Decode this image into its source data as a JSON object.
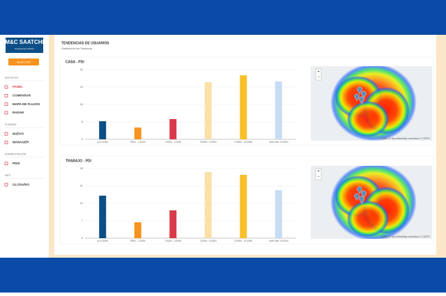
{
  "sidebar": {
    "logo": "M&C SAATCHI",
    "logo_sub": "Powered by LOGAN",
    "button": "Nuevo PDI",
    "sections": [
      {
        "title": "REPORTES",
        "items": [
          "PANEL",
          "COMPARAR",
          "MAPA DE FLUJOS",
          "RADAR"
        ]
      },
      {
        "title": "PLANNER",
        "items": [
          "NUEVO",
          "MANAGER"
        ]
      },
      {
        "title": "ADMINISTRACIÓN",
        "items": [
          "PDIS"
        ]
      },
      {
        "title": "INFO",
        "items": [
          "GLOSARIO"
        ]
      }
    ]
  },
  "header": {
    "title": "TENDENCIAS DE USUARIOS",
    "subtitle": "Distribución de Distancia"
  },
  "map": {
    "zoom_in": "+",
    "zoom_out": "−",
    "attribution": "Leaflet | © OpenStreetMap contributors © CARTO"
  },
  "chart_data": [
    {
      "type": "bar",
      "title": "CASA - PDI",
      "categories": [
        "up to 500m",
        "500m - 1.000m",
        "1.000m - 2.000m",
        "2.000m - 5.000m",
        "5.000m - 10.000m",
        "more than 10.000m"
      ],
      "values": [
        8.3,
        5.4,
        9.3,
        26.2,
        29.4,
        26.6
      ],
      "colors": [
        "#0b4f86",
        "#f7931e",
        "#d83a4a",
        "#fbe0a8",
        "#f9c02b",
        "#c7dcf5"
      ],
      "ylim": [
        0,
        32
      ],
      "yticks": [
        0,
        8,
        16,
        24,
        32
      ],
      "grid": true
    },
    {
      "type": "bar",
      "title": "TRABAJO - PDI",
      "categories": [
        "up to 500m",
        "500m - 1.000m",
        "1.000m - 2.000m",
        "2.000m - 5.000m",
        "5.000m - 10.000m",
        "more than 10.000m"
      ],
      "values": [
        17.1,
        6.4,
        11.2,
        26.6,
        25.5,
        19.3
      ],
      "colors": [
        "#0b4f86",
        "#f7931e",
        "#d83a4a",
        "#fbe0a8",
        "#f9c02b",
        "#c7dcf5"
      ],
      "ylim": [
        0,
        28
      ],
      "yticks": [
        0,
        7,
        14,
        21,
        28
      ],
      "grid": true
    }
  ]
}
